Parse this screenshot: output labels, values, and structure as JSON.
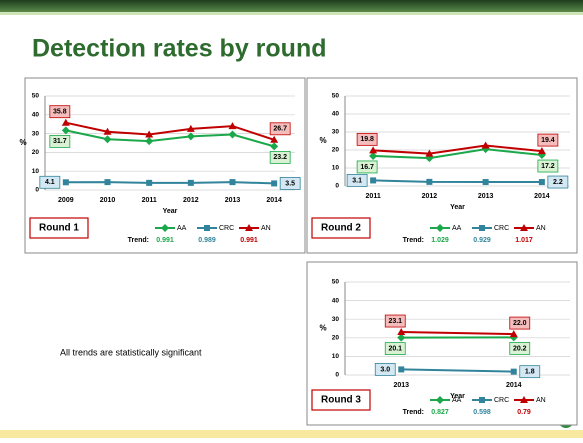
{
  "title": "Detection rates by round",
  "note": "All trends are statistically significant",
  "chart_data": [
    {
      "type": "line",
      "round_label": "Round 1",
      "xlabel": "Year",
      "ylabel": "%",
      "trend_label": "Trend:",
      "categories": [
        "2009",
        "2010",
        "2011",
        "2012",
        "2013",
        "2014"
      ],
      "ylim": [
        0,
        50
      ],
      "yticks": [
        0,
        10,
        20,
        30,
        40,
        50
      ],
      "grid": true,
      "series": [
        {
          "name": "AA",
          "color": "#1aa84a",
          "values": [
            31.7,
            27,
            26,
            28.5,
            29.5,
            23.2
          ],
          "value_labels": [
            "31.7",
            null,
            null,
            null,
            null,
            "23.2"
          ],
          "trend": 0.991
        },
        {
          "name": "CRC",
          "color": "#31849b",
          "values": [
            4.1,
            4.2,
            3.8,
            3.8,
            4.2,
            3.5
          ],
          "value_labels": [
            "4.1",
            null,
            null,
            null,
            null,
            "3.5"
          ],
          "trend": 0.989
        },
        {
          "name": "AN",
          "color": "#c00000",
          "values": [
            35.8,
            31,
            29.5,
            32.5,
            34,
            26.7
          ],
          "value_labels": [
            "35.8",
            null,
            null,
            null,
            null,
            "26.7"
          ],
          "trend": 0.991
        }
      ]
    },
    {
      "type": "line",
      "round_label": "Round 2",
      "xlabel": "Year",
      "ylabel": "%",
      "trend_label": "Trend:",
      "categories": [
        "2011",
        "2012",
        "2013",
        "2014"
      ],
      "ylim": [
        0,
        50
      ],
      "yticks": [
        0,
        10,
        20,
        30,
        40,
        50
      ],
      "grid": true,
      "series": [
        {
          "name": "AA",
          "color": "#1aa84a",
          "values": [
            16.7,
            15.5,
            20.5,
            17.2
          ],
          "value_labels": [
            "16.7",
            null,
            null,
            "17.2"
          ],
          "trend": 1.029
        },
        {
          "name": "CRC",
          "color": "#31849b",
          "values": [
            3.1,
            2.3,
            2.2,
            2.2
          ],
          "value_labels": [
            "3.1",
            null,
            null,
            "2.2"
          ],
          "trend": 0.929
        },
        {
          "name": "AN",
          "color": "#c00000",
          "values": [
            19.8,
            18,
            22.5,
            19.4
          ],
          "value_labels": [
            "19.8",
            null,
            null,
            "19.4"
          ],
          "trend": 1.017
        }
      ]
    },
    {
      "type": "line",
      "round_label": "Round 3",
      "xlabel": "Year",
      "ylabel": "%",
      "trend_label": "Trend:",
      "categories": [
        "2013",
        "2014"
      ],
      "ylim": [
        0,
        50
      ],
      "yticks": [
        0,
        10,
        20,
        30,
        40,
        50
      ],
      "grid": true,
      "series": [
        {
          "name": "AA",
          "color": "#1aa84a",
          "values": [
            20.1,
            20.2
          ],
          "value_labels": [
            "20.1",
            "20.2"
          ],
          "trend": 0.827
        },
        {
          "name": "CRC",
          "color": "#31849b",
          "values": [
            3.0,
            1.8
          ],
          "value_labels": [
            "3.0",
            "1.8"
          ],
          "trend": 0.598
        },
        {
          "name": "AN",
          "color": "#c00000",
          "values": [
            23.1,
            22.0
          ],
          "value_labels": [
            "23.1",
            "22.0"
          ],
          "trend": 0.79
        }
      ]
    }
  ]
}
